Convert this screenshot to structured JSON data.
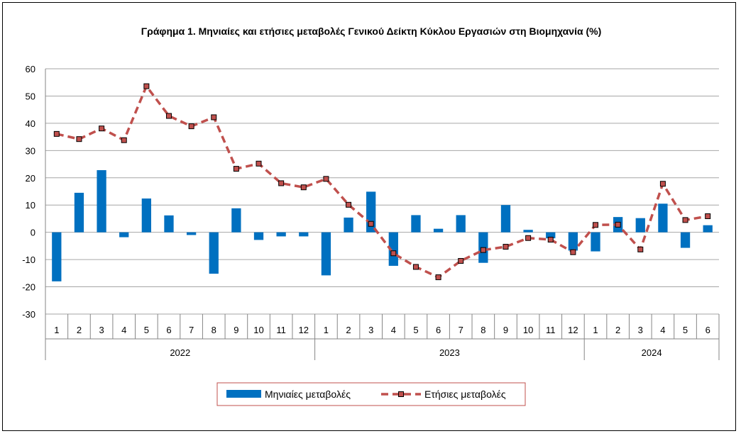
{
  "chart_data": {
    "type": "bar+line",
    "title": "Γράφημα 1.  Μηνιαίες και ετήσιες μεταβολές  Γενικού Δείκτη Κύκλου Εργασιών στη Βιομηχανία  (%)",
    "categories": [
      "1",
      "2",
      "3",
      "4",
      "5",
      "6",
      "7",
      "8",
      "9",
      "10",
      "11",
      "12",
      "1",
      "2",
      "3",
      "4",
      "5",
      "6",
      "7",
      "8",
      "9",
      "10",
      "11",
      "12",
      "1",
      "2",
      "3",
      "4",
      "5",
      "6"
    ],
    "year_groups": [
      {
        "label": "2022",
        "count": 12
      },
      {
        "label": "2023",
        "count": 12
      },
      {
        "label": "2024",
        "count": 6
      }
    ],
    "yticks": [
      60,
      50,
      40,
      30,
      20,
      10,
      0,
      -10,
      -20,
      -30
    ],
    "ylim": [
      -30,
      60
    ],
    "grid": true,
    "legend_position": "bottom",
    "series": [
      {
        "name": "Μηνιαίες μεταβολές",
        "type": "bar",
        "color": "#0070C0",
        "values": [
          -18.0,
          14.5,
          22.8,
          -1.8,
          12.4,
          6.2,
          -1.0,
          -15.2,
          8.8,
          -2.8,
          -1.5,
          -1.5,
          -15.8,
          5.4,
          14.9,
          -12.3,
          6.3,
          1.3,
          6.3,
          -11.2,
          10.0,
          0.9,
          -2.2,
          -6.7,
          -7.0,
          5.6,
          5.2,
          10.5,
          -5.7,
          2.6
        ]
      },
      {
        "name": "Ετήσιες μεταβολές",
        "type": "line",
        "color": "#C0504D",
        "marker_color": "#8B1A1A",
        "values": [
          36.1,
          34.2,
          38.1,
          33.8,
          53.6,
          42.7,
          38.9,
          42.2,
          23.3,
          25.2,
          18.0,
          16.5,
          19.6,
          10.1,
          3.1,
          -7.7,
          -12.7,
          -16.5,
          -10.5,
          -6.5,
          -5.3,
          -2.1,
          -2.7,
          -7.3,
          2.7,
          2.8,
          -6.3,
          17.8,
          4.5,
          5.9
        ]
      }
    ]
  }
}
